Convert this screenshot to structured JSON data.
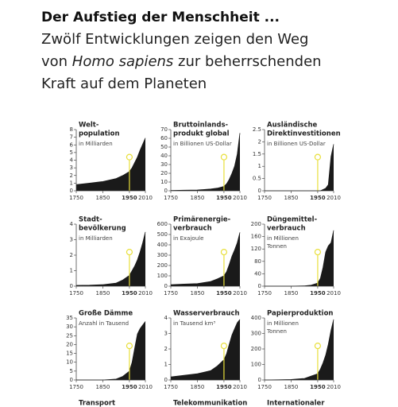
{
  "header": {
    "title": "Der Aufstieg der Menschheit ...",
    "subtitle": [
      "Zwölf Entwicklungen zeigen den Weg",
      "von ",
      "Homo sapiens",
      " zur beherrschenden",
      "Kraft auf dem Planeten"
    ]
  },
  "chart_data": [
    {
      "type": "area",
      "title": [
        "Welt-",
        "population"
      ],
      "unit": [
        "in Milliarden"
      ],
      "color": "#1a1a1a",
      "marker_x": 1950,
      "x": [
        1750,
        1800,
        1850,
        1900,
        1925,
        1950,
        1960,
        1970,
        1980,
        1990,
        2000,
        2010
      ],
      "values": [
        0.8,
        1.0,
        1.2,
        1.6,
        2.0,
        2.5,
        3.0,
        3.7,
        4.4,
        5.3,
        6.1,
        6.9
      ],
      "xlim": [
        1750,
        2010
      ],
      "xticks": [
        1750,
        1850,
        1950,
        2010
      ],
      "ylim": [
        0,
        8
      ],
      "yticks": [
        0,
        1,
        2,
        3,
        4,
        5,
        6,
        7,
        8
      ]
    },
    {
      "type": "area",
      "title": [
        "Bruttoinlands-",
        "produkt global"
      ],
      "unit": [
        "in Billionen US-Dollar"
      ],
      "color": "#1a1a1a",
      "marker_x": 1950,
      "x": [
        1750,
        1800,
        1850,
        1900,
        1925,
        1950,
        1960,
        1970,
        1980,
        1990,
        2000,
        2010
      ],
      "values": [
        0.4,
        0.6,
        0.9,
        2,
        3,
        5,
        8,
        13,
        20,
        28,
        42,
        66
      ],
      "xlim": [
        1750,
        2010
      ],
      "xticks": [
        1750,
        1850,
        1950,
        2010
      ],
      "ylim": [
        0,
        70
      ],
      "yticks": [
        0,
        10,
        20,
        30,
        40,
        50,
        60,
        70
      ]
    },
    {
      "type": "area",
      "title": [
        "Ausländische",
        "Direktinvestitionen"
      ],
      "unit": [
        "in Billionen US-Dollar"
      ],
      "color": "#1a1a1a",
      "marker_x": 1950,
      "x": [
        1750,
        1800,
        1850,
        1900,
        1925,
        1950,
        1960,
        1970,
        1980,
        1990,
        2000,
        2010
      ],
      "values": [
        0,
        0,
        0,
        0,
        0,
        0,
        0,
        0.05,
        0.1,
        0.25,
        1.4,
        1.9
      ],
      "xlim": [
        1750,
        2010
      ],
      "xticks": [
        1750,
        1850,
        1950,
        2010
      ],
      "ylim": [
        0,
        2.5
      ],
      "yticks": [
        0,
        0.5,
        1,
        1.5,
        2,
        2.5
      ]
    },
    {
      "type": "area",
      "title": [
        "Stadt-",
        "bevölkerung"
      ],
      "unit": [
        "in Milliarden"
      ],
      "color": "#1a1a1a",
      "marker_x": 1950,
      "x": [
        1750,
        1800,
        1850,
        1900,
        1925,
        1950,
        1960,
        1970,
        1980,
        1990,
        2000,
        2010
      ],
      "values": [
        0.05,
        0.06,
        0.1,
        0.2,
        0.4,
        0.7,
        1.0,
        1.3,
        1.7,
        2.2,
        2.8,
        3.5
      ],
      "xlim": [
        1750,
        2010
      ],
      "xticks": [
        1750,
        1850,
        1950,
        2010
      ],
      "ylim": [
        0,
        4
      ],
      "yticks": [
        0,
        1,
        2,
        3,
        4
      ]
    },
    {
      "type": "area",
      "title": [
        "Primärenergie-",
        "verbrauch"
      ],
      "unit": [
        "in Exajoule"
      ],
      "color": "#1a1a1a",
      "marker_x": 1950,
      "x": [
        1750,
        1800,
        1850,
        1900,
        1925,
        1950,
        1960,
        1970,
        1980,
        1990,
        2000,
        2010
      ],
      "values": [
        15,
        20,
        25,
        45,
        70,
        100,
        140,
        210,
        290,
        350,
        420,
        520
      ],
      "xlim": [
        1750,
        2010
      ],
      "xticks": [
        1750,
        1850,
        1950,
        2010
      ],
      "ylim": [
        0,
        600
      ],
      "yticks": [
        0,
        100,
        200,
        300,
        400,
        500,
        600
      ]
    },
    {
      "type": "area",
      "title": [
        "Düngemittel-",
        "verbrauch"
      ],
      "unit": [
        "in Millionen",
        "Tonnen"
      ],
      "color": "#1a1a1a",
      "marker_x": 1950,
      "x": [
        1750,
        1800,
        1850,
        1900,
        1925,
        1950,
        1960,
        1970,
        1980,
        1990,
        2000,
        2010
      ],
      "values": [
        0,
        0,
        0,
        1,
        3,
        10,
        25,
        60,
        110,
        130,
        140,
        180
      ],
      "xlim": [
        1750,
        2010
      ],
      "xticks": [
        1750,
        1850,
        1950,
        2010
      ],
      "ylim": [
        0,
        200
      ],
      "yticks": [
        0,
        40,
        80,
        120,
        160,
        200
      ]
    },
    {
      "type": "area",
      "title": [
        "Große Dämme"
      ],
      "unit": [
        "Anzahl in Tausend"
      ],
      "color": "#1a1a1a",
      "marker_x": 1950,
      "x": [
        1750,
        1800,
        1850,
        1900,
        1925,
        1950,
        1960,
        1970,
        1980,
        1990,
        2000,
        2010
      ],
      "values": [
        0,
        0,
        0,
        0.5,
        2,
        5,
        10,
        18,
        26,
        29,
        31,
        33
      ],
      "xlim": [
        1750,
        2010
      ],
      "xticks": [
        1750,
        1850,
        1950,
        2010
      ],
      "ylim": [
        0,
        35
      ],
      "yticks": [
        0,
        5,
        10,
        15,
        20,
        25,
        30,
        35
      ]
    },
    {
      "type": "area",
      "title": [
        "Wasserverbrauch"
      ],
      "unit": [
        "in Tausend km³"
      ],
      "color": "#1a1a1a",
      "marker_x": 1950,
      "x": [
        1750,
        1800,
        1850,
        1900,
        1925,
        1950,
        1960,
        1970,
        1980,
        1990,
        2000,
        2010
      ],
      "values": [
        0.2,
        0.3,
        0.4,
        0.6,
        0.9,
        1.3,
        1.7,
        2.3,
        2.9,
        3.3,
        3.7,
        3.9
      ],
      "xlim": [
        1750,
        2010
      ],
      "xticks": [
        1750,
        1850,
        1950,
        2010
      ],
      "ylim": [
        0,
        4
      ],
      "yticks": [
        0,
        1,
        2,
        3,
        4
      ]
    },
    {
      "type": "area",
      "title": [
        "Papierproduktion"
      ],
      "unit": [
        "in Millionen",
        "Tonnen"
      ],
      "color": "#1a1a1a",
      "marker_x": 1950,
      "x": [
        1750,
        1800,
        1850,
        1900,
        1925,
        1950,
        1960,
        1970,
        1980,
        1990,
        2000,
        2010
      ],
      "values": [
        0,
        1,
        3,
        10,
        25,
        40,
        70,
        110,
        160,
        230,
        320,
        390
      ],
      "xlim": [
        1750,
        2010
      ],
      "xticks": [
        1750,
        1850,
        1950,
        2010
      ],
      "ylim": [
        0,
        400
      ],
      "yticks": [
        0,
        100,
        200,
        300,
        400
      ]
    },
    {
      "type": "area",
      "title": [
        "Transport"
      ]
    },
    {
      "type": "area",
      "title": [
        "Telekommunikation"
      ]
    },
    {
      "type": "area",
      "title": [
        "Internationaler"
      ]
    }
  ]
}
